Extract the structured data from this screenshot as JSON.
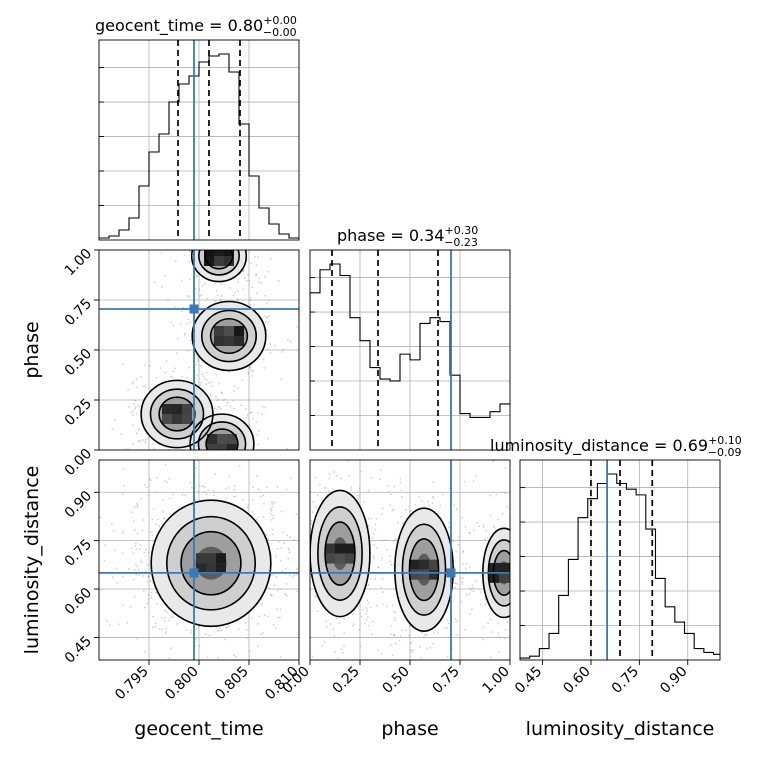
{
  "chart_data": {
    "type": "corner",
    "truth_color": "#3b78b4",
    "grid": true,
    "parameters": [
      {
        "name": "geocent_time",
        "xlabel": "geocent_time",
        "ylabel": "",
        "range": [
          0.79,
          0.81
        ],
        "ticks": [
          0.795,
          0.8,
          0.805,
          0.81
        ],
        "tick_labels": [
          "0.795",
          "0.800",
          "0.805",
          "0.810"
        ],
        "title": {
          "base": "geocent_time = 0.80",
          "sup": "+0.00",
          "sub": "−0.00"
        },
        "quantiles": [
          0.7979,
          0.801,
          0.8041
        ],
        "truth": 0.7995,
        "hist_edges": [
          0.79,
          0.791,
          0.792,
          0.793,
          0.794,
          0.795,
          0.796,
          0.797,
          0.798,
          0.799,
          0.8,
          0.801,
          0.802,
          0.803,
          0.804,
          0.805,
          0.806,
          0.807,
          0.808,
          0.809,
          0.81
        ],
        "hist_counts": [
          0.01,
          0.02,
          0.05,
          0.11,
          0.27,
          0.44,
          0.53,
          0.69,
          0.78,
          0.82,
          0.89,
          0.92,
          0.93,
          0.84,
          0.58,
          0.32,
          0.16,
          0.08,
          0.03,
          0.01
        ]
      },
      {
        "name": "phase",
        "xlabel": "phase",
        "ylabel": "phase",
        "range": [
          0.0,
          1.0
        ],
        "ticks": [
          0.0,
          0.25,
          0.5,
          0.75,
          1.0
        ],
        "tick_labels": [
          "0.00",
          "0.25",
          "0.50",
          "0.75",
          "1.00"
        ],
        "title": {
          "base": "phase = 0.34",
          "sup": "+0.30",
          "sub": "−0.23"
        },
        "quantiles": [
          0.11,
          0.34,
          0.64
        ],
        "truth": 0.705,
        "hist_edges": [
          0.0,
          0.05,
          0.1,
          0.15,
          0.2,
          0.25,
          0.3,
          0.35,
          0.4,
          0.45,
          0.5,
          0.55,
          0.6,
          0.65,
          0.7,
          0.75,
          0.8,
          0.85,
          0.9,
          0.95,
          1.0
        ],
        "hist_counts": [
          0.82,
          0.94,
          0.97,
          0.91,
          0.69,
          0.57,
          0.43,
          0.37,
          0.36,
          0.5,
          0.47,
          0.66,
          0.69,
          0.67,
          0.39,
          0.19,
          0.17,
          0.17,
          0.2,
          0.24
        ]
      },
      {
        "name": "luminosity_distance",
        "xlabel": "luminosity_distance",
        "ylabel": "luminosity_distance",
        "range": [
          0.38,
          1.0
        ],
        "ticks": [
          0.45,
          0.6,
          0.75,
          0.9
        ],
        "tick_labels": [
          "0.45",
          "0.60",
          "0.75",
          "0.90"
        ],
        "title": {
          "base": "luminosity_distance = 0.69",
          "sup": "+0.10",
          "sub": "−0.09"
        },
        "quantiles": [
          0.6,
          0.69,
          0.79
        ],
        "truth": 0.65,
        "hist_edges": [
          0.38,
          0.41,
          0.44,
          0.47,
          0.5,
          0.53,
          0.56,
          0.59,
          0.62,
          0.65,
          0.68,
          0.71,
          0.74,
          0.77,
          0.8,
          0.83,
          0.86,
          0.89,
          0.92,
          0.95,
          0.98,
          1.0
        ],
        "hist_counts": [
          0.01,
          0.02,
          0.06,
          0.14,
          0.34,
          0.53,
          0.75,
          0.85,
          0.93,
          0.98,
          0.93,
          0.9,
          0.87,
          0.69,
          0.43,
          0.28,
          0.2,
          0.14,
          0.06,
          0.04,
          0.03
        ]
      }
    ],
    "contour_panels": [
      {
        "x": "geocent_time",
        "y": "phase",
        "density_peaks": [
          {
            "x": 0.803,
            "y": 0.57,
            "weight": 1.0
          },
          {
            "x": 0.7978,
            "y": 0.18,
            "weight": 0.95
          },
          {
            "x": 0.8023,
            "y": 0.03,
            "weight": 0.75
          },
          {
            "x": 0.802,
            "y": 0.97,
            "weight": 0.55
          }
        ],
        "truth": [
          0.7995,
          0.705
        ]
      },
      {
        "x": "geocent_time",
        "y": "luminosity_distance",
        "density_peaks": [
          {
            "x": 0.8012,
            "y": 0.68,
            "weight": 1.0
          }
        ],
        "truth": [
          0.7995,
          0.65
        ]
      },
      {
        "x": "phase",
        "y": "luminosity_distance",
        "density_peaks": [
          {
            "x": 0.15,
            "y": 0.71,
            "weight": 1.0
          },
          {
            "x": 0.57,
            "y": 0.66,
            "weight": 0.95
          },
          {
            "x": 0.97,
            "y": 0.65,
            "weight": 0.5
          }
        ],
        "truth": [
          0.705,
          0.65
        ]
      }
    ]
  }
}
